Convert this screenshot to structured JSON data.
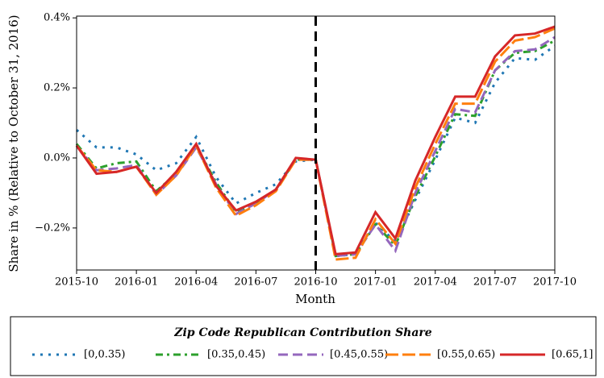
{
  "chart_data": {
    "type": "line",
    "x_label": "Month",
    "y_label": "Share in % (Relative to October 31, 2016)",
    "x": [
      "2015-10",
      "2015-11",
      "2015-12",
      "2016-01",
      "2016-02",
      "2016-03",
      "2016-04",
      "2016-05",
      "2016-06",
      "2016-07",
      "2016-08",
      "2016-09",
      "2016-10",
      "2016-11",
      "2016-12",
      "2017-01",
      "2017-02",
      "2017-03",
      "2017-04",
      "2017-05",
      "2017-06",
      "2017-07",
      "2017-08",
      "2017-09",
      "2017-10"
    ],
    "xticks": [
      "2015-10",
      "2016-01",
      "2016-04",
      "2016-07",
      "2016-10",
      "2017-01",
      "2017-04",
      "2017-07",
      "2017-10"
    ],
    "vline": "2016-10",
    "ylim": [
      -0.32,
      0.405
    ],
    "yticks": [
      {
        "value": -0.2,
        "label": "−0.2%"
      },
      {
        "value": 0,
        "label": "0.0%"
      },
      {
        "value": 0.2,
        "label": "0.2%"
      },
      {
        "value": 0.4,
        "label": "0.4%"
      }
    ],
    "legend_title": "Zip Code Republican Contribution Share",
    "legend": "bottom",
    "series": [
      {
        "name": "[0,0.35)",
        "color": "#1f77b4",
        "linestyle": "dotted",
        "values": [
          0.08,
          0.03,
          0.03,
          0.01,
          -0.035,
          -0.015,
          0.06,
          -0.055,
          -0.13,
          -0.1,
          -0.075,
          -0.01,
          -0.005,
          -0.28,
          -0.275,
          -0.185,
          -0.24,
          -0.12,
          -0.005,
          0.115,
          0.1,
          0.215,
          0.285,
          0.28,
          0.32
        ]
      },
      {
        "name": "[0.35,0.45)",
        "color": "#2ca02c",
        "linestyle": "dashdot",
        "values": [
          0.04,
          -0.03,
          -0.015,
          -0.01,
          -0.095,
          -0.045,
          0.035,
          -0.07,
          -0.155,
          -0.13,
          -0.09,
          -0.005,
          -0.005,
          -0.28,
          -0.275,
          -0.19,
          -0.25,
          -0.11,
          0.005,
          0.125,
          0.12,
          0.25,
          0.3,
          0.305,
          0.335
        ]
      },
      {
        "name": "[0.45,0.55)",
        "color": "#9467bd",
        "linestyle": "dashed",
        "values": [
          0.035,
          -0.035,
          -0.03,
          -0.02,
          -0.105,
          -0.05,
          0.03,
          -0.075,
          -0.16,
          -0.13,
          -0.09,
          -0.005,
          -0.005,
          -0.28,
          -0.275,
          -0.19,
          -0.265,
          -0.1,
          0.02,
          0.14,
          0.13,
          0.25,
          0.305,
          0.31,
          0.345
        ]
      },
      {
        "name": "[0.55,0.65)",
        "color": "#ff7f0e",
        "linestyle": "longdash",
        "values": [
          0.035,
          -0.035,
          -0.04,
          -0.025,
          -0.105,
          -0.05,
          0.035,
          -0.085,
          -0.165,
          -0.135,
          -0.095,
          -0.005,
          -0.005,
          -0.29,
          -0.285,
          -0.175,
          -0.245,
          -0.085,
          0.04,
          0.155,
          0.155,
          0.275,
          0.335,
          0.345,
          0.37
        ]
      },
      {
        "name": "[0.65,1]",
        "color": "#d62728",
        "linestyle": "solid",
        "values": [
          0.035,
          -0.045,
          -0.04,
          -0.025,
          -0.1,
          -0.04,
          0.04,
          -0.08,
          -0.15,
          -0.125,
          -0.09,
          0.0,
          -0.005,
          -0.275,
          -0.27,
          -0.155,
          -0.23,
          -0.065,
          0.06,
          0.175,
          0.175,
          0.29,
          0.35,
          0.355,
          0.375
        ]
      }
    ]
  }
}
